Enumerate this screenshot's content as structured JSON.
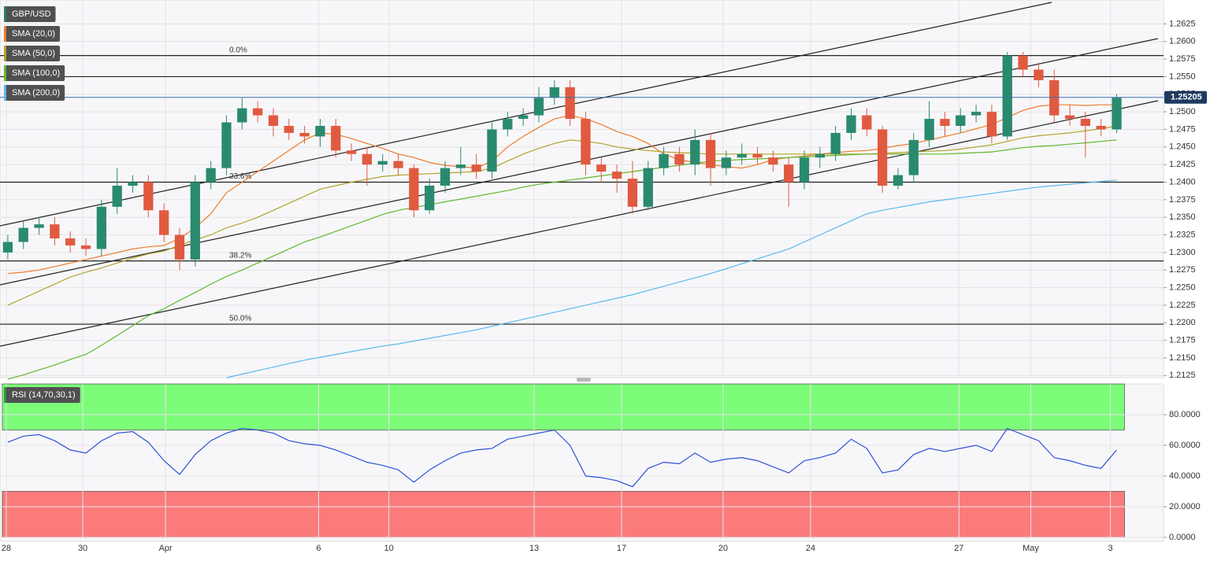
{
  "chart_data": [
    {
      "type": "candlestick",
      "title": "GBP/USD",
      "xlim": [
        -0.5,
        74
      ],
      "ylim": [
        1.2122,
        1.2659
      ],
      "yticks": [
        1.2125,
        {
          "value": 1.215,
          "label": "1.2150"
        },
        1.2175,
        {
          "value": 1.22,
          "label": "1.2200"
        },
        1.2225,
        {
          "value": 1.225,
          "label": "1.2250"
        },
        1.2275,
        {
          "value": 1.23,
          "label": "1.2300"
        },
        1.2325,
        {
          "value": 1.235,
          "label": "1.2350"
        },
        1.2375,
        {
          "value": 1.24,
          "label": "1.2400"
        },
        1.2425,
        {
          "value": 1.245,
          "label": "1.2450"
        },
        1.2475,
        {
          "value": 1.25,
          "label": "1.2500"
        },
        1.2525,
        {
          "value": 1.255,
          "label": "1.2550"
        },
        1.2575,
        {
          "value": 1.26,
          "label": "1.2600"
        },
        1.2625
      ],
      "open": [
        1.23,
        1.2315,
        1.2335,
        1.234,
        1.232,
        1.231,
        1.2305,
        1.2365,
        1.2395,
        1.24,
        1.236,
        1.2325,
        1.229,
        1.24,
        1.242,
        1.2485,
        1.2505,
        1.2495,
        1.248,
        1.247,
        1.2465,
        1.248,
        1.2445,
        1.244,
        1.2425,
        1.243,
        1.242,
        1.236,
        1.2395,
        1.242,
        1.2425,
        1.2415,
        1.2475,
        1.249,
        1.2495,
        1.252,
        1.2535,
        1.249,
        1.2425,
        1.2415,
        1.2405,
        1.2365,
        1.242,
        1.244,
        1.2425,
        1.246,
        1.242,
        1.2435,
        1.244,
        1.2435,
        1.2425,
        1.24,
        1.2435,
        1.244,
        1.247,
        1.2495,
        1.2475,
        1.2395,
        1.241,
        1.246,
        1.249,
        1.248,
        1.2495,
        1.25,
        1.2465,
        1.258,
        1.256,
        1.2545,
        1.2495,
        1.249,
        1.248,
        1.2475
      ],
      "high": [
        1.2325,
        1.2345,
        1.235,
        1.235,
        1.233,
        1.232,
        1.2375,
        1.242,
        1.241,
        1.241,
        1.237,
        1.2335,
        1.241,
        1.243,
        1.2495,
        1.252,
        1.2515,
        1.2505,
        1.249,
        1.248,
        1.249,
        1.249,
        1.2455,
        1.245,
        1.244,
        1.244,
        1.2425,
        1.2405,
        1.243,
        1.245,
        1.244,
        1.2485,
        1.25,
        1.2505,
        1.2535,
        1.2545,
        1.2545,
        1.25,
        1.2435,
        1.2425,
        1.243,
        1.243,
        1.245,
        1.245,
        1.2475,
        1.247,
        1.2445,
        1.2455,
        1.245,
        1.2445,
        1.2435,
        1.2445,
        1.245,
        1.248,
        1.2505,
        1.2505,
        1.248,
        1.242,
        1.247,
        1.2515,
        1.25,
        1.2505,
        1.251,
        1.251,
        1.2585,
        1.2585,
        1.257,
        1.256,
        1.251,
        1.25,
        1.249,
        1.2525
      ],
      "low": [
        1.229,
        1.2305,
        1.2325,
        1.231,
        1.23,
        1.2295,
        1.2295,
        1.2355,
        1.2385,
        1.235,
        1.2315,
        1.2275,
        1.228,
        1.239,
        1.241,
        1.2475,
        1.2485,
        1.2465,
        1.246,
        1.2455,
        1.245,
        1.2435,
        1.243,
        1.2395,
        1.2415,
        1.241,
        1.235,
        1.2355,
        1.2385,
        1.241,
        1.2405,
        1.2405,
        1.2465,
        1.248,
        1.2485,
        1.251,
        1.248,
        1.241,
        1.24,
        1.2385,
        1.2355,
        1.236,
        1.241,
        1.2415,
        1.241,
        1.2395,
        1.241,
        1.2425,
        1.2425,
        1.2415,
        1.2365,
        1.239,
        1.242,
        1.243,
        1.246,
        1.2465,
        1.2385,
        1.239,
        1.24,
        1.245,
        1.2465,
        1.247,
        1.2485,
        1.2455,
        1.246,
        1.255,
        1.2535,
        1.2485,
        1.248,
        1.2435,
        1.2465,
        1.247
      ],
      "close": [
        1.2315,
        1.2335,
        1.234,
        1.232,
        1.231,
        1.2305,
        1.2365,
        1.2395,
        1.24,
        1.236,
        1.2325,
        1.229,
        1.24,
        1.242,
        1.2485,
        1.2505,
        1.2495,
        1.248,
        1.247,
        1.2465,
        1.248,
        1.2445,
        1.244,
        1.2425,
        1.243,
        1.242,
        1.236,
        1.2395,
        1.242,
        1.2425,
        1.2415,
        1.2475,
        1.249,
        1.2495,
        1.252,
        1.2535,
        1.249,
        1.2425,
        1.2415,
        1.2405,
        1.2365,
        1.242,
        1.244,
        1.2425,
        1.246,
        1.242,
        1.2435,
        1.244,
        1.2435,
        1.2425,
        1.24,
        1.2435,
        1.244,
        1.247,
        1.2495,
        1.2475,
        1.2395,
        1.241,
        1.246,
        1.249,
        1.248,
        1.2495,
        1.25,
        1.2465,
        1.258,
        1.256,
        1.2545,
        1.2495,
        1.249,
        1.248,
        1.2475,
        1.252
      ],
      "up_color": "#2a8a6e",
      "down_color": "#e05a40",
      "title_color": "#2a7f6a",
      "series": [
        {
          "name": "SMA (20,0)",
          "color": "#f07b2a",
          "values": [
            1.227,
            1.2272,
            1.2275,
            1.228,
            1.2285,
            1.229,
            1.2295,
            1.23,
            1.2305,
            1.2308,
            1.231,
            1.232,
            1.2335,
            1.2355,
            1.2385,
            1.24,
            1.2415,
            1.243,
            1.2445,
            1.246,
            1.247,
            1.2468,
            1.2462,
            1.2455,
            1.2448,
            1.244,
            1.2435,
            1.2428,
            1.2424,
            1.2422,
            1.242,
            1.243,
            1.245,
            1.2465,
            1.2478,
            1.249,
            1.2495,
            1.249,
            1.2482,
            1.2472,
            1.2465,
            1.2455,
            1.244,
            1.2432,
            1.2428,
            1.2425,
            1.2422,
            1.242,
            1.2425,
            1.2432,
            1.2435,
            1.2437,
            1.244,
            1.2442,
            1.2444,
            1.2445,
            1.2448,
            1.2452,
            1.2455,
            1.246,
            1.2465,
            1.247,
            1.2476,
            1.2482,
            1.2492,
            1.2502,
            1.2508,
            1.251,
            1.251,
            1.2509,
            1.251,
            1.251
          ]
        },
        {
          "name": "SMA (50,0)",
          "color": "#b3a32c",
          "values": [
            1.2225,
            1.2235,
            1.2245,
            1.2255,
            1.2265,
            1.2272,
            1.2278,
            1.2285,
            1.2292,
            1.2298,
            1.2302,
            1.231,
            1.2318,
            1.2325,
            1.2335,
            1.2342,
            1.235,
            1.236,
            1.237,
            1.238,
            1.239,
            1.2395,
            1.24,
            1.2404,
            1.2408,
            1.241,
            1.2411,
            1.2412,
            1.2413,
            1.2414,
            1.2415,
            1.242,
            1.243,
            1.244,
            1.2448,
            1.2455,
            1.246,
            1.2458,
            1.2455,
            1.245,
            1.2447,
            1.2445,
            1.2443,
            1.2442,
            1.2441,
            1.244,
            1.244,
            1.244,
            1.244,
            1.244,
            1.244,
            1.244,
            1.244,
            1.244,
            1.244,
            1.244,
            1.2441,
            1.2442,
            1.2443,
            1.2444,
            1.2445,
            1.2447,
            1.245,
            1.2453,
            1.2458,
            1.2463,
            1.2466,
            1.2468,
            1.247,
            1.2473,
            1.2476,
            1.248
          ]
        },
        {
          "name": "SMA (100,0)",
          "color": "#62b82c",
          "values": [
            1.212,
            1.2126,
            1.2133,
            1.214,
            1.2148,
            1.2155,
            1.2168,
            1.2182,
            1.2196,
            1.221,
            1.222,
            1.2232,
            1.2243,
            1.2255,
            1.2266,
            1.2275,
            1.2285,
            1.2295,
            1.2305,
            1.2315,
            1.2322,
            1.233,
            1.2338,
            1.2346,
            1.2354,
            1.236,
            1.2364,
            1.2368,
            1.2372,
            1.2376,
            1.238,
            1.2384,
            1.2388,
            1.2393,
            1.2397,
            1.24,
            1.2403,
            1.2406,
            1.2409,
            1.2412,
            1.2415,
            1.2418,
            1.2421,
            1.2424,
            1.2427,
            1.243,
            1.2431,
            1.2432,
            1.2433,
            1.2434,
            1.2435,
            1.2436,
            1.2437,
            1.2438,
            1.2439,
            1.244,
            1.244,
            1.244,
            1.244,
            1.244,
            1.244,
            1.2441,
            1.2442,
            1.2443,
            1.2446,
            1.2449,
            1.2451,
            1.2452,
            1.2454,
            1.2456,
            1.2458,
            1.246
          ]
        },
        {
          "name": "SMA (200,0)",
          "color": "#5cb8ee",
          "values": [
            null,
            null,
            null,
            null,
            null,
            null,
            null,
            null,
            null,
            null,
            null,
            null,
            null,
            null,
            1.2122,
            1.2127,
            1.2132,
            1.2137,
            1.2142,
            1.2147,
            1.2151,
            1.2155,
            1.2159,
            1.2163,
            1.2167,
            1.217,
            1.2174,
            1.2178,
            1.2182,
            1.2186,
            1.219,
            1.2195,
            1.22,
            1.2205,
            1.221,
            1.2215,
            1.222,
            1.2225,
            1.223,
            1.2235,
            1.224,
            1.2246,
            1.2252,
            1.2258,
            1.2264,
            1.227,
            1.2277,
            1.2284,
            1.2291,
            1.2298,
            1.2305,
            1.2315,
            1.2325,
            1.2335,
            1.2345,
            1.2355,
            1.236,
            1.2364,
            1.2368,
            1.2372,
            1.2375,
            1.2378,
            1.2381,
            1.2384,
            1.2387,
            1.239,
            1.2393,
            1.2395,
            1.2397,
            1.2399,
            1.2401,
            1.2403
          ]
        }
      ],
      "levels": [
        {
          "label": "0.0%",
          "value": 1.258
        },
        {
          "value": 1.255
        },
        {
          "label": "23.6%",
          "value": 1.24
        },
        {
          "label": "38.2%",
          "value": 1.2288
        },
        {
          "label": "50.0%",
          "value": 1.2198
        }
      ],
      "last_price": 1.25205,
      "last_price_color": "#3a6fb0",
      "grid": true
    },
    {
      "type": "line",
      "title": "RSI (14,70,30,1)",
      "title_color": "#2a9a3a",
      "xlim": [
        -0.5,
        74
      ],
      "ylim": [
        0,
        100
      ],
      "yticks": [
        {
          "value": 0,
          "label": "0.0000"
        },
        {
          "value": 20,
          "label": "20.0000"
        },
        {
          "value": 40,
          "label": "40.0000"
        },
        {
          "value": 60,
          "label": "60.0000"
        },
        {
          "value": 80,
          "label": "80.0000"
        }
      ],
      "xticks": [
        {
          "value": -0.1,
          "label": "28"
        },
        {
          "value": 4.8,
          "label": "30"
        },
        {
          "value": 10.1,
          "label": "Apr"
        },
        {
          "value": 19.9,
          "label": "6"
        },
        {
          "value": 24.4,
          "label": "10"
        },
        {
          "value": 33.7,
          "label": "13"
        },
        {
          "value": 39.3,
          "label": "17"
        },
        {
          "value": 45.8,
          "label": "20"
        },
        {
          "value": 51.4,
          "label": "24"
        },
        {
          "value": 60.9,
          "label": "27"
        },
        {
          "value": 65.5,
          "label": "May"
        },
        {
          "value": 70.6,
          "label": "3"
        }
      ],
      "overbought": 70,
      "oversold": 30,
      "overbought_color": "#7dfc7a",
      "oversold_color": "#fb7b7b",
      "color": "#3050d8",
      "values": [
        62,
        66,
        67,
        63,
        57,
        55,
        63,
        68,
        69,
        62,
        50,
        41,
        54,
        63,
        68,
        71,
        70,
        68,
        63,
        61,
        60,
        57,
        53,
        49,
        47,
        44,
        36,
        44,
        50,
        55,
        57,
        58,
        64,
        66,
        68,
        70,
        60,
        40,
        39,
        37,
        33,
        45,
        49,
        48,
        55,
        49,
        51,
        52,
        50,
        46,
        42,
        50,
        52,
        55,
        64,
        58,
        42,
        44,
        54,
        58,
        56,
        58,
        60,
        56,
        71,
        67,
        63,
        52,
        50,
        47,
        45,
        57
      ],
      "grid": true
    }
  ]
}
